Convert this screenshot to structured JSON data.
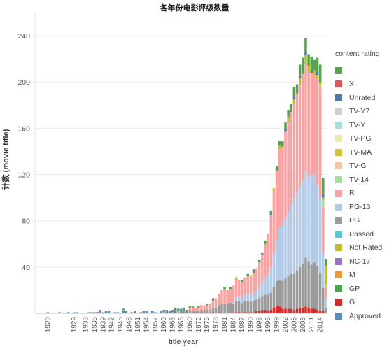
{
  "chart_data": {
    "type": "bar",
    "stacked": true,
    "title": "各年份电影评级数量",
    "xlabel": "title year",
    "ylabel": "计数 (movie title)",
    "ylim": [
      0,
      260
    ],
    "yticks": [
      40,
      80,
      120,
      160,
      200,
      240
    ],
    "xtick_labels": [
      "1920",
      "1929",
      "1933",
      "1936",
      "1939",
      "1942",
      "1945",
      "1948",
      "1951",
      "1954",
      "1957",
      "1960",
      "1963",
      "1966",
      "1969",
      "1972",
      "1975",
      "1978",
      "1981",
      "1984",
      "1987",
      "1990",
      "1993",
      "1996",
      "1999",
      "2002",
      "2005",
      "2008",
      "2011",
      "2014"
    ],
    "grid": "horizontal",
    "legend_position": "right",
    "legend_title": "content rating",
    "legend": [
      {
        "name": "",
        "color": "#59a14f"
      },
      {
        "name": "X",
        "color": "#e15759"
      },
      {
        "name": "Unrated",
        "color": "#4e79a7"
      },
      {
        "name": "TV-Y7",
        "color": "#d0d0d0"
      },
      {
        "name": "TV-Y",
        "color": "#a8e0d6"
      },
      {
        "name": "TV-PG",
        "color": "#e8ecaf"
      },
      {
        "name": "TV-MA",
        "color": "#d4c235"
      },
      {
        "name": "TV-G",
        "color": "#f3c8a0"
      },
      {
        "name": "TV-14",
        "color": "#a8dc9f"
      },
      {
        "name": "R",
        "color": "#f7a3a3"
      },
      {
        "name": "PG-13",
        "color": "#b4cbe8"
      },
      {
        "name": "PG",
        "color": "#9b9b9b"
      },
      {
        "name": "Passed",
        "color": "#56c8d2"
      },
      {
        "name": "Not Rated",
        "color": "#bcc02c"
      },
      {
        "name": "NC-17",
        "color": "#9474c4"
      },
      {
        "name": "M",
        "color": "#f0963b"
      },
      {
        "name": "GP",
        "color": "#41a84b"
      },
      {
        "name": "G",
        "color": "#d62a2a"
      },
      {
        "name": "Approved",
        "color": "#5a8fb5"
      }
    ],
    "year_start": 1916,
    "year_end": 2016,
    "series": [
      {
        "name": "G",
        "values": [
          [
            1937,
            1
          ],
          [
            1940,
            1
          ],
          [
            1950,
            1
          ],
          [
            1961,
            1
          ],
          [
            1967,
            1
          ],
          [
            1973,
            1
          ],
          [
            1977,
            1
          ],
          [
            1979,
            1
          ],
          [
            1985,
            1
          ],
          [
            1986,
            1
          ],
          [
            1988,
            1
          ],
          [
            1989,
            1
          ],
          [
            1990,
            1
          ],
          [
            1991,
            1
          ],
          [
            1992,
            2
          ],
          [
            1993,
            2
          ],
          [
            1994,
            3
          ],
          [
            1995,
            3
          ],
          [
            1996,
            2
          ],
          [
            1997,
            3
          ],
          [
            1998,
            5
          ],
          [
            1999,
            6
          ],
          [
            2000,
            6
          ],
          [
            2001,
            4
          ],
          [
            2002,
            4
          ],
          [
            2003,
            4
          ],
          [
            2004,
            4
          ],
          [
            2005,
            3
          ],
          [
            2006,
            4
          ],
          [
            2007,
            5
          ],
          [
            2008,
            5
          ],
          [
            2009,
            6
          ],
          [
            2010,
            5
          ],
          [
            2011,
            4
          ],
          [
            2012,
            4
          ],
          [
            2013,
            3
          ],
          [
            2014,
            2
          ],
          [
            2015,
            2
          ]
        ]
      },
      {
        "name": "PG",
        "values": [
          [
            1963,
            1
          ],
          [
            1965,
            1
          ],
          [
            1967,
            2
          ],
          [
            1969,
            3
          ],
          [
            1970,
            2
          ],
          [
            1971,
            2
          ],
          [
            1972,
            2
          ],
          [
            1973,
            2
          ],
          [
            1974,
            3
          ],
          [
            1975,
            3
          ],
          [
            1976,
            3
          ],
          [
            1977,
            4
          ],
          [
            1978,
            5
          ],
          [
            1979,
            6
          ],
          [
            1980,
            8
          ],
          [
            1981,
            8
          ],
          [
            1982,
            8
          ],
          [
            1983,
            9
          ],
          [
            1984,
            8
          ],
          [
            1985,
            10
          ],
          [
            1986,
            10
          ],
          [
            1987,
            9
          ],
          [
            1988,
            10
          ],
          [
            1989,
            10
          ],
          [
            1990,
            9
          ],
          [
            1991,
            10
          ],
          [
            1992,
            10
          ],
          [
            1993,
            11
          ],
          [
            1994,
            12
          ],
          [
            1995,
            13
          ],
          [
            1996,
            14
          ],
          [
            1997,
            15
          ],
          [
            1998,
            18
          ],
          [
            1999,
            22
          ],
          [
            2000,
            23
          ],
          [
            2001,
            24
          ],
          [
            2002,
            26
          ],
          [
            2003,
            28
          ],
          [
            2004,
            30
          ],
          [
            2005,
            31
          ],
          [
            2006,
            33
          ],
          [
            2007,
            35
          ],
          [
            2008,
            38
          ],
          [
            2009,
            42
          ],
          [
            2010,
            40
          ],
          [
            2011,
            38
          ],
          [
            2012,
            40
          ],
          [
            2013,
            38
          ],
          [
            2014,
            33
          ],
          [
            2015,
            20
          ],
          [
            2016,
            5
          ]
        ]
      },
      {
        "name": "PG-13",
        "values": [
          [
            1984,
            2
          ],
          [
            1985,
            3
          ],
          [
            1986,
            4
          ],
          [
            1987,
            4
          ],
          [
            1988,
            5
          ],
          [
            1989,
            6
          ],
          [
            1990,
            6
          ],
          [
            1991,
            7
          ],
          [
            1992,
            8
          ],
          [
            1993,
            10
          ],
          [
            1994,
            12
          ],
          [
            1995,
            15
          ],
          [
            1996,
            18
          ],
          [
            1997,
            22
          ],
          [
            1998,
            28
          ],
          [
            1999,
            35
          ],
          [
            2000,
            45
          ],
          [
            2001,
            48
          ],
          [
            2002,
            52
          ],
          [
            2003,
            55
          ],
          [
            2004,
            60
          ],
          [
            2005,
            65
          ],
          [
            2006,
            68
          ],
          [
            2007,
            70
          ],
          [
            2008,
            72
          ],
          [
            2009,
            75
          ],
          [
            2010,
            73
          ],
          [
            2011,
            78
          ],
          [
            2012,
            76
          ],
          [
            2013,
            70
          ],
          [
            2014,
            66
          ],
          [
            2015,
            30
          ],
          [
            2016,
            8
          ]
        ]
      },
      {
        "name": "R",
        "values": [
          [
            1969,
            2
          ],
          [
            1970,
            3
          ],
          [
            1971,
            3
          ],
          [
            1972,
            3
          ],
          [
            1973,
            4
          ],
          [
            1974,
            4
          ],
          [
            1975,
            4
          ],
          [
            1976,
            5
          ],
          [
            1977,
            6
          ],
          [
            1978,
            8
          ],
          [
            1979,
            10
          ],
          [
            1980,
            12
          ],
          [
            1981,
            13
          ],
          [
            1982,
            12
          ],
          [
            1983,
            12
          ],
          [
            1984,
            14
          ],
          [
            1985,
            15
          ],
          [
            1986,
            14
          ],
          [
            1987,
            14
          ],
          [
            1988,
            15
          ],
          [
            1989,
            15
          ],
          [
            1990,
            16
          ],
          [
            1991,
            17
          ],
          [
            1992,
            19
          ],
          [
            1993,
            21
          ],
          [
            1994,
            24
          ],
          [
            1995,
            28
          ],
          [
            1996,
            35
          ],
          [
            1997,
            45
          ],
          [
            1998,
            55
          ],
          [
            1999,
            60
          ],
          [
            2000,
            68
          ],
          [
            2001,
            68
          ],
          [
            2002,
            75
          ],
          [
            2003,
            78
          ],
          [
            2004,
            80
          ],
          [
            2005,
            82
          ],
          [
            2006,
            85
          ],
          [
            2007,
            87
          ],
          [
            2008,
            92
          ],
          [
            2009,
            92
          ],
          [
            2010,
            90
          ],
          [
            2011,
            88
          ],
          [
            2012,
            86
          ],
          [
            2013,
            92
          ],
          [
            2014,
            95
          ],
          [
            2015,
            40
          ],
          [
            2016,
            10
          ]
        ]
      },
      {
        "name": "TV-14",
        "values": [
          [
            2014,
            1
          ],
          [
            2015,
            6
          ],
          [
            2016,
            2
          ]
        ]
      },
      {
        "name": "Not Rated",
        "values": [
          [
            1960,
            1
          ],
          [
            1965,
            1
          ],
          [
            1985,
            1
          ],
          [
            1990,
            1
          ],
          [
            1995,
            1
          ],
          [
            1998,
            2
          ],
          [
            2000,
            3
          ],
          [
            2003,
            5
          ],
          [
            2005,
            4
          ],
          [
            2007,
            6
          ],
          [
            2009,
            8
          ],
          [
            2010,
            6
          ],
          [
            2012,
            4
          ],
          [
            2013,
            3
          ],
          [
            2014,
            3
          ],
          [
            2015,
            2
          ],
          [
            2016,
            16
          ]
        ]
      },
      {
        "name": "Approved",
        "values": [
          [
            1920,
            1
          ],
          [
            1924,
            1
          ],
          [
            1927,
            1
          ],
          [
            1930,
            1
          ],
          [
            1935,
            1
          ],
          [
            1936,
            1
          ],
          [
            1938,
            2
          ],
          [
            1940,
            1
          ],
          [
            1941,
            2
          ],
          [
            1943,
            1
          ],
          [
            1944,
            1
          ],
          [
            1946,
            2
          ],
          [
            1947,
            2
          ],
          [
            1949,
            1
          ],
          [
            1950,
            1
          ],
          [
            1952,
            1
          ],
          [
            1953,
            2
          ],
          [
            1954,
            2
          ],
          [
            1956,
            2
          ],
          [
            1957,
            1
          ],
          [
            1959,
            2
          ],
          [
            1960,
            2
          ],
          [
            1961,
            2
          ],
          [
            1962,
            2
          ],
          [
            1963,
            2
          ],
          [
            1964,
            3
          ],
          [
            1965,
            2
          ],
          [
            1966,
            2
          ],
          [
            1967,
            2
          ],
          [
            1968,
            2
          ]
        ]
      },
      {
        "name": "Passed",
        "values": [
          [
            1929,
            1
          ],
          [
            1934,
            1
          ],
          [
            1939,
            1
          ],
          [
            1946,
            1
          ]
        ]
      },
      {
        "name": "Unrated",
        "values": [
          [
            1994,
            1
          ],
          [
            1997,
            1
          ],
          [
            2000,
            1
          ],
          [
            2002,
            2
          ],
          [
            2005,
            3
          ],
          [
            2007,
            2
          ],
          [
            2009,
            3
          ],
          [
            2011,
            2
          ],
          [
            2013,
            3
          ],
          [
            2015,
            3
          ]
        ]
      },
      {
        "name": "",
        "values": [
          [
            1938,
            1
          ],
          [
            1946,
            1
          ],
          [
            1964,
            2
          ],
          [
            1966,
            2
          ],
          [
            1968,
            1
          ],
          [
            1969,
            1
          ],
          [
            1970,
            1
          ],
          [
            1972,
            1
          ],
          [
            1975,
            1
          ],
          [
            1977,
            2
          ],
          [
            1981,
            2
          ],
          [
            1983,
            2
          ],
          [
            1985,
            1
          ],
          [
            1987,
            2
          ],
          [
            1989,
            2
          ],
          [
            1991,
            3
          ],
          [
            1993,
            2
          ],
          [
            1995,
            3
          ],
          [
            1997,
            3
          ],
          [
            1999,
            4
          ],
          [
            2000,
            3
          ],
          [
            2001,
            5
          ],
          [
            2002,
            6
          ],
          [
            2003,
            6
          ],
          [
            2004,
            7
          ],
          [
            2005,
            8
          ],
          [
            2006,
            8
          ],
          [
            2007,
            10
          ],
          [
            2008,
            14
          ],
          [
            2009,
            12
          ],
          [
            2010,
            10
          ],
          [
            2011,
            12
          ],
          [
            2012,
            9
          ],
          [
            2013,
            12
          ],
          [
            2014,
            15
          ],
          [
            2015,
            14
          ],
          [
            2016,
            6
          ]
        ]
      }
    ]
  }
}
